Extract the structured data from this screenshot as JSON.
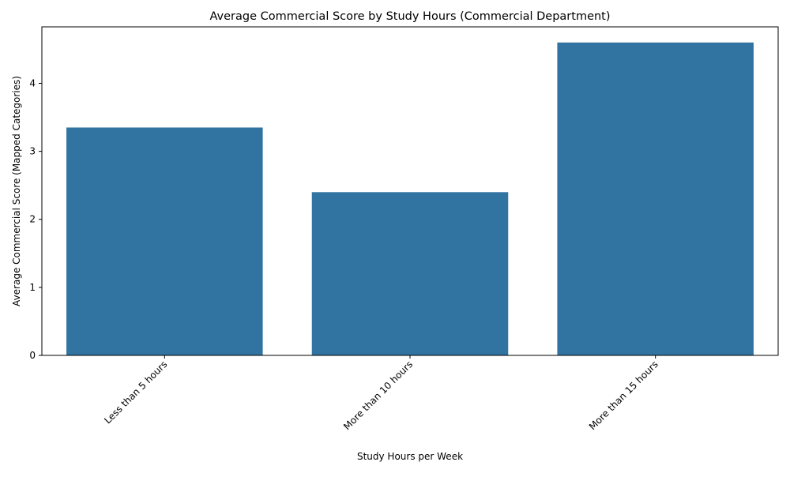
{
  "chart_data": {
    "type": "bar",
    "title": "Average Commercial Score by Study Hours (Commercial Department)",
    "xlabel": "Study Hours per Week",
    "ylabel": "Average Commercial Score (Mapped Categories)",
    "categories": [
      "Less than 5 hours",
      "More than 10 hours",
      "More than 15 hours"
    ],
    "values": [
      3.35,
      2.4,
      4.6
    ],
    "ylim": [
      0,
      4.83
    ],
    "yticks": [
      0,
      1,
      2,
      3,
      4
    ],
    "grid": false,
    "bar_color": "#3274a1",
    "xtick_rotation": 45
  }
}
